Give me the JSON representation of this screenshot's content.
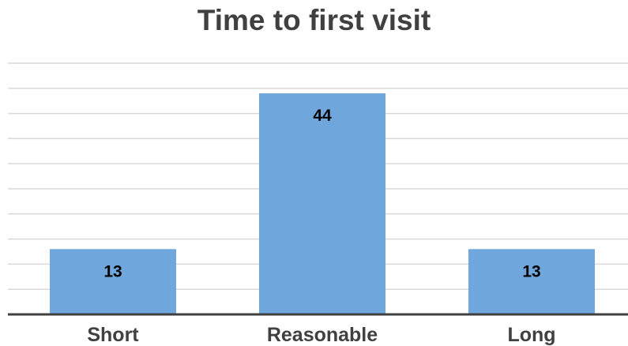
{
  "chart_data": {
    "type": "bar",
    "title": "Time to first visit",
    "categories": [
      "Short",
      "Reasonable",
      "Long"
    ],
    "values": [
      13,
      44,
      13
    ],
    "data_labels": [
      "13",
      "44",
      "13"
    ],
    "xlabel": "",
    "ylabel": "",
    "ylim": [
      0,
      50
    ],
    "grid": true,
    "legend": "none",
    "colors": {
      "bar": "#6fa7dc",
      "grid": "#d9d9d9",
      "axis": "#404040",
      "label": "#000000",
      "title": "#404040"
    }
  }
}
